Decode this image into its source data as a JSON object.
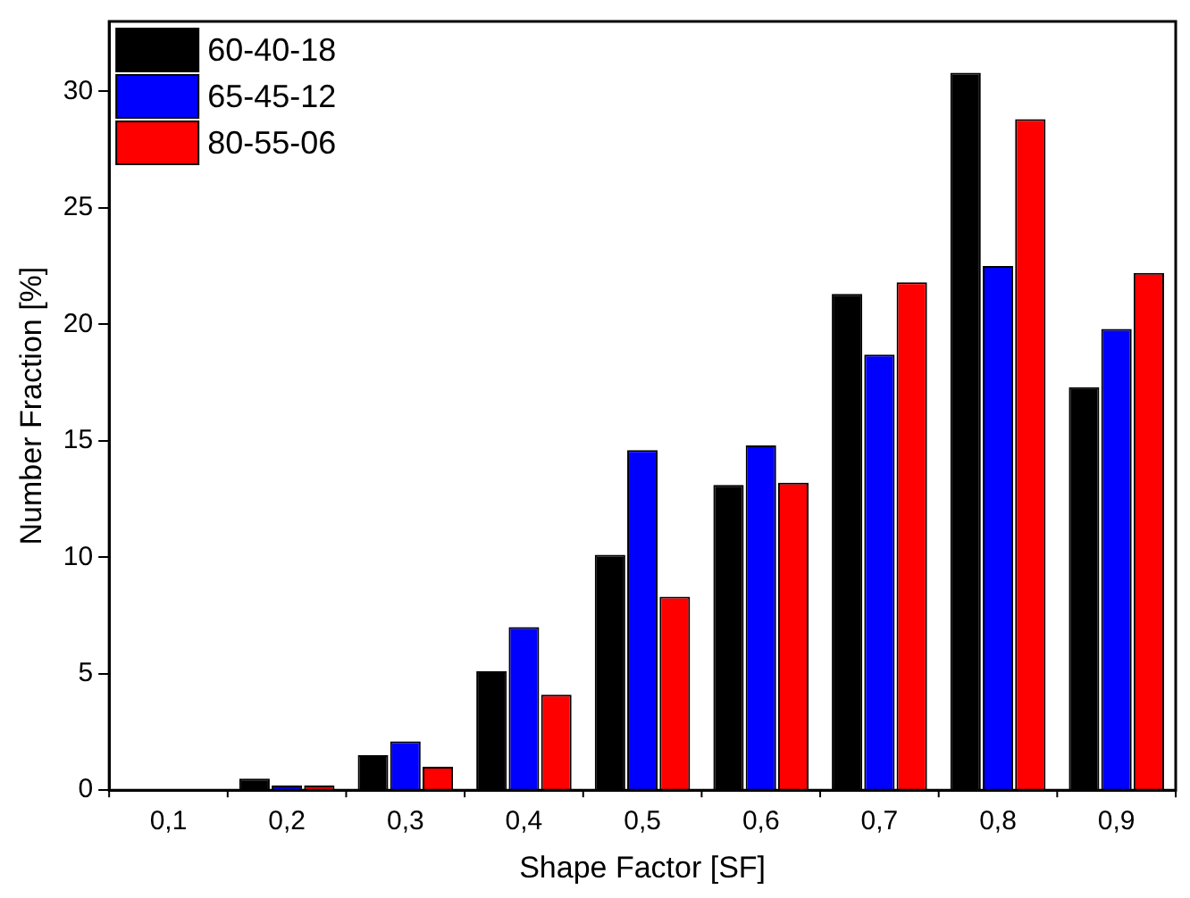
{
  "chart_data": {
    "type": "bar",
    "xlabel": "Shape Factor [SF]",
    "ylabel": "Number Fraction [%]",
    "categories": [
      "0,1",
      "0,2",
      "0,3",
      "0,4",
      "0,5",
      "0,6",
      "0,7",
      "0,8",
      "0,9"
    ],
    "series": [
      {
        "name": "60-40-18",
        "color": "#000000",
        "values": [
          0,
          0.5,
          1.5,
          5.1,
          10.1,
          13.1,
          21.3,
          30.8,
          17.3
        ]
      },
      {
        "name": "65-45-12",
        "color": "#0000ff",
        "values": [
          0,
          0.2,
          2.1,
          7.0,
          14.6,
          14.8,
          18.7,
          22.5,
          19.8
        ]
      },
      {
        "name": "80-55-06",
        "color": "#ff0000",
        "values": [
          0,
          0.2,
          1.0,
          4.1,
          8.3,
          13.2,
          21.8,
          28.8,
          22.2
        ]
      }
    ],
    "ylim": [
      0,
      33
    ],
    "yticks": [
      0,
      5,
      10,
      15,
      20,
      25,
      30
    ],
    "grid": false,
    "legend": "top left"
  }
}
